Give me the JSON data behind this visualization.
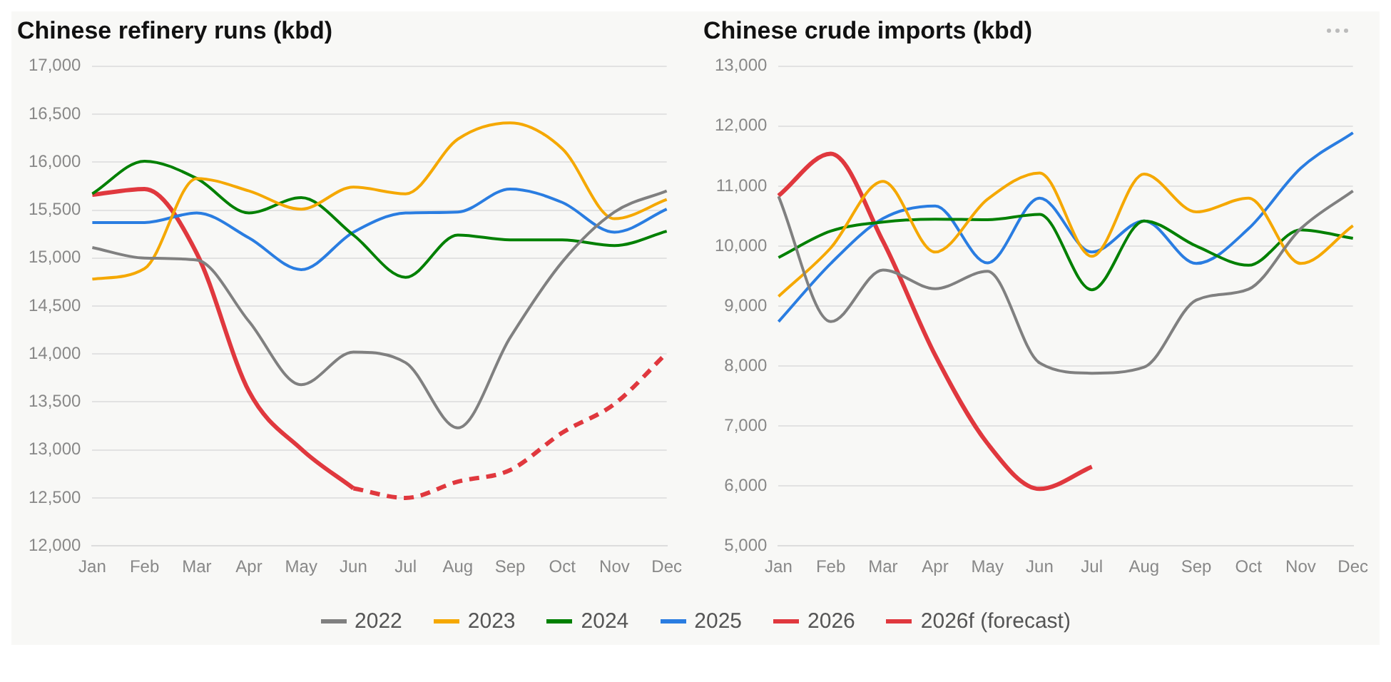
{
  "chart_data": [
    {
      "type": "line",
      "title": "Chinese refinery runs (kbd)",
      "categories": [
        "Jan",
        "Feb",
        "Mar",
        "Apr",
        "May",
        "Jun",
        "Jul",
        "Aug",
        "Sep",
        "Oct",
        "Nov",
        "Dec"
      ],
      "ylim": [
        12000,
        17000
      ],
      "yticks": [
        {
          "value": 12000,
          "label": "12,000"
        },
        {
          "value": 12500,
          "label": "12,500"
        },
        {
          "value": 13000,
          "label": "13,000"
        },
        {
          "value": 13500,
          "label": "13,500"
        },
        {
          "value": 14000,
          "label": "14,000"
        },
        {
          "value": 14500,
          "label": "14,500"
        },
        {
          "value": 15000,
          "label": "15,000"
        },
        {
          "value": 15500,
          "label": "15,500"
        },
        {
          "value": 16000,
          "label": "16,000"
        },
        {
          "value": 16500,
          "label": "16,500"
        },
        {
          "value": 17000,
          "label": "17,000"
        }
      ],
      "grid": "y",
      "legend": "bottom",
      "marker": "none",
      "series": [
        {
          "name": "2022",
          "color": "#808080",
          "values": [
            15110,
            15000,
            14980,
            14340,
            13680,
            14020,
            13910,
            13230,
            14170,
            14960,
            15480,
            15700
          ]
        },
        {
          "name": "2023",
          "color": "#f5a800",
          "values": [
            14780,
            14890,
            15830,
            15700,
            15510,
            15740,
            15670,
            16240,
            16410,
            16140,
            15410,
            15610
          ]
        },
        {
          "name": "2024",
          "color": "#008000",
          "values": [
            15670,
            16010,
            15830,
            15470,
            15630,
            15240,
            14800,
            15240,
            15190,
            15190,
            15130,
            15280
          ]
        },
        {
          "name": "2025",
          "color": "#2a7de1",
          "values": [
            15370,
            15370,
            15470,
            15210,
            14880,
            15270,
            15470,
            15480,
            15720,
            15580,
            15270,
            15510
          ]
        },
        {
          "name": "2026",
          "color": "#e0383e",
          "values": [
            15660,
            15720,
            15050,
            13610,
            13010,
            12600,
            null,
            null,
            null,
            null,
            null,
            null
          ]
        },
        {
          "name": "2026f (forecast)",
          "color": "#e0383e",
          "line_style": "dashed",
          "values": [
            null,
            null,
            null,
            null,
            null,
            12600,
            12500,
            12670,
            12790,
            13180,
            13480,
            14010
          ]
        }
      ]
    },
    {
      "type": "line",
      "title": "Chinese crude imports (kbd)",
      "categories": [
        "Jan",
        "Feb",
        "Mar",
        "Apr",
        "May",
        "Jun",
        "Jul",
        "Aug",
        "Sep",
        "Oct",
        "Nov",
        "Dec"
      ],
      "ylim": [
        5000,
        13000
      ],
      "yticks": [
        {
          "value": 5000,
          "label": "5,000"
        },
        {
          "value": 6000,
          "label": "6,000"
        },
        {
          "value": 7000,
          "label": "7,000"
        },
        {
          "value": 8000,
          "label": "8,000"
        },
        {
          "value": 9000,
          "label": "9,000"
        },
        {
          "value": 10000,
          "label": "10,000"
        },
        {
          "value": 11000,
          "label": "11,000"
        },
        {
          "value": 12000,
          "label": "12,000"
        },
        {
          "value": 13000,
          "label": "13,000"
        }
      ],
      "grid": "y",
      "legend": "bottom",
      "marker": "none",
      "series": [
        {
          "name": "2022",
          "color": "#808080",
          "values": [
            10830,
            8740,
            9600,
            9290,
            9580,
            8050,
            7880,
            7980,
            9100,
            9280,
            10290,
            10920
          ]
        },
        {
          "name": "2023",
          "color": "#f5a800",
          "values": [
            9160,
            9970,
            11080,
            9900,
            10780,
            11220,
            9830,
            11200,
            10570,
            10800,
            9710,
            10340
          ]
        },
        {
          "name": "2024",
          "color": "#008000",
          "values": [
            9810,
            10250,
            10400,
            10450,
            10440,
            10530,
            9270,
            10420,
            10000,
            9680,
            10270,
            10130
          ]
        },
        {
          "name": "2025",
          "color": "#2a7de1",
          "values": [
            8740,
            9710,
            10460,
            10670,
            9720,
            10800,
            9900,
            10420,
            9710,
            10290,
            11300,
            11890
          ]
        },
        {
          "name": "2026",
          "color": "#e0383e",
          "values": [
            10840,
            11540,
            10080,
            8180,
            6710,
            5950,
            6320,
            null,
            null,
            null,
            null,
            null
          ]
        }
      ]
    }
  ]
}
